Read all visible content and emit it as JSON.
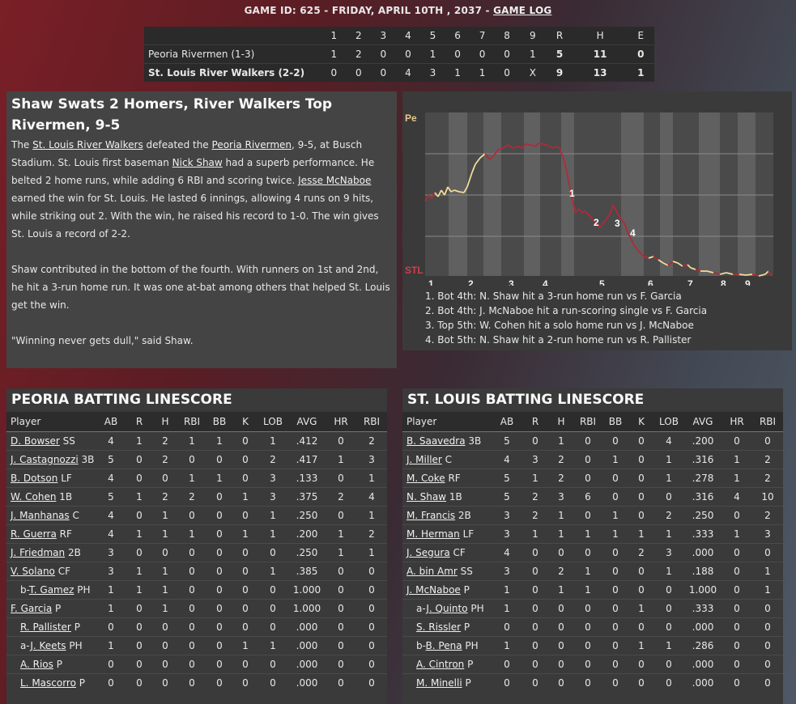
{
  "header": {
    "text": "GAME ID: 625 - FRIDAY, APRIL 10TH , 2037 - ",
    "link": "GAME LOG"
  },
  "linescore": {
    "columns": [
      "1",
      "2",
      "3",
      "4",
      "5",
      "6",
      "7",
      "8",
      "9",
      "R",
      "H",
      "E"
    ],
    "rows": [
      {
        "team": "Peoria Rivermen (1-3)",
        "values": [
          "1",
          "2",
          "0",
          "0",
          "1",
          "0",
          "0",
          "0",
          "1",
          "5",
          "11",
          "0"
        ]
      },
      {
        "team": "St. Louis River Walkers (2-2)",
        "values": [
          "0",
          "0",
          "0",
          "4",
          "3",
          "1",
          "1",
          "0",
          "X",
          "9",
          "13",
          "1"
        ]
      }
    ]
  },
  "recap": {
    "headline": "Shaw Swats 2 Homers, River Walkers Top Rivermen, 9-5",
    "p1": [
      {
        "t": "The "
      },
      {
        "t": "St. Louis River Walkers",
        "link": true
      },
      {
        "t": " defeated the "
      },
      {
        "t": "Peoria Rivermen",
        "link": true
      },
      {
        "t": ", 9-5, at Busch Stadium. St. Louis first baseman "
      },
      {
        "t": "Nick Shaw",
        "link": true
      },
      {
        "t": " had a superb performance. He belted 2 home runs, while adding 6 RBI and scoring twice. "
      },
      {
        "t": "Jesse McNaboe",
        "link": true
      },
      {
        "t": " earned the win for St. Louis. He lasted 6 innings, allowing 4 runs on 9 hits, while striking out 2. With the win, he raised his record to 1-0. The win gives St. Louis a record of 2-2."
      }
    ],
    "p2": "Shaw contributed in the bottom of the fourth. With runners on 1st and 2nd, he hit a 3-run home run. It was one at-bat among others that helped St. Louis get the win.",
    "p3": "\"Winning never gets dull,\" said Shaw."
  },
  "winprob": {
    "top_label": "Pe",
    "bottom_label": "STL",
    "innings": [
      "1",
      "2",
      "3",
      "4",
      "5",
      "6",
      "7",
      "8",
      "9"
    ],
    "markers": [
      "1",
      "2",
      "3",
      "4"
    ],
    "notes": [
      "1. Bot 4th: N. Shaw hit a 3-run home run vs F. Garcia",
      "2. Bot 4th: J. McNaboe hit a run-scoring single vs F. Garcia",
      "3. Top 5th: W. Cohen hit a solo home run vs J. McNaboe",
      "4. Bot 5th: N. Shaw hit a 2-run home run vs R. Pallister"
    ],
    "colors": {
      "peoria": "#f0dc9a",
      "stl": "#b02a3a"
    }
  },
  "batting_columns": [
    "Player",
    "AB",
    "R",
    "H",
    "RBI",
    "BB",
    "K",
    "LOB",
    "AVG",
    "HR",
    "RBI"
  ],
  "peoria": {
    "title": "PEORIA BATTING LINESCORE",
    "rows": [
      {
        "pre": "",
        "name": "D. Bowser",
        "pos": "SS",
        "ind": false,
        "s": [
          "4",
          "1",
          "2",
          "1",
          "1",
          "0",
          "1",
          ".412",
          "0",
          "2"
        ]
      },
      {
        "pre": "",
        "name": "J. Castagnozzi",
        "pos": "3B",
        "ind": false,
        "s": [
          "5",
          "0",
          "2",
          "0",
          "0",
          "0",
          "2",
          ".417",
          "1",
          "3"
        ]
      },
      {
        "pre": "",
        "name": "B. Dotson",
        "pos": "LF",
        "ind": false,
        "s": [
          "4",
          "0",
          "0",
          "1",
          "1",
          "0",
          "3",
          ".133",
          "0",
          "1"
        ]
      },
      {
        "pre": "",
        "name": "W. Cohen",
        "pos": "1B",
        "ind": false,
        "s": [
          "5",
          "1",
          "2",
          "2",
          "0",
          "1",
          "3",
          ".375",
          "2",
          "4"
        ]
      },
      {
        "pre": "",
        "name": "J. Manhanas",
        "pos": "C",
        "ind": false,
        "s": [
          "4",
          "0",
          "1",
          "0",
          "0",
          "0",
          "1",
          ".250",
          "0",
          "1"
        ]
      },
      {
        "pre": "",
        "name": "R. Guerra",
        "pos": "RF",
        "ind": false,
        "s": [
          "4",
          "1",
          "1",
          "1",
          "0",
          "1",
          "1",
          ".200",
          "1",
          "2"
        ]
      },
      {
        "pre": "",
        "name": "J. Friedman",
        "pos": "2B",
        "ind": false,
        "s": [
          "3",
          "0",
          "0",
          "0",
          "0",
          "0",
          "0",
          ".250",
          "1",
          "1"
        ]
      },
      {
        "pre": "",
        "name": "V. Solano",
        "pos": "CF",
        "ind": false,
        "s": [
          "3",
          "1",
          "1",
          "0",
          "0",
          "0",
          "1",
          ".385",
          "0",
          "0"
        ]
      },
      {
        "pre": "b-",
        "name": "T. Gamez",
        "pos": "PH",
        "ind": true,
        "s": [
          "1",
          "1",
          "1",
          "0",
          "0",
          "0",
          "0",
          "1.000",
          "0",
          "0"
        ]
      },
      {
        "pre": "",
        "name": "F. Garcia",
        "pos": "P",
        "ind": false,
        "s": [
          "1",
          "0",
          "1",
          "0",
          "0",
          "0",
          "0",
          "1.000",
          "0",
          "0"
        ]
      },
      {
        "pre": "",
        "name": "R. Pallister",
        "pos": "P",
        "ind": true,
        "s": [
          "0",
          "0",
          "0",
          "0",
          "0",
          "0",
          "0",
          ".000",
          "0",
          "0"
        ]
      },
      {
        "pre": "a-",
        "name": "J. Keets",
        "pos": "PH",
        "ind": true,
        "s": [
          "1",
          "0",
          "0",
          "0",
          "0",
          "1",
          "1",
          ".000",
          "0",
          "0"
        ]
      },
      {
        "pre": "",
        "name": "A. Rios",
        "pos": "P",
        "ind": true,
        "s": [
          "0",
          "0",
          "0",
          "0",
          "0",
          "0",
          "0",
          ".000",
          "0",
          "0"
        ]
      },
      {
        "pre": "",
        "name": "L. Mascorro",
        "pos": "P",
        "ind": true,
        "s": [
          "0",
          "0",
          "0",
          "0",
          "0",
          "0",
          "0",
          ".000",
          "0",
          "0"
        ]
      }
    ]
  },
  "stlouis": {
    "title": "ST. LOUIS BATTING LINESCORE",
    "rows": [
      {
        "pre": "",
        "name": "B. Saavedra",
        "pos": "3B",
        "ind": false,
        "s": [
          "5",
          "0",
          "1",
          "0",
          "0",
          "0",
          "4",
          ".200",
          "0",
          "0"
        ]
      },
      {
        "pre": "",
        "name": "J. Miller",
        "pos": "C",
        "ind": false,
        "s": [
          "4",
          "3",
          "2",
          "0",
          "1",
          "0",
          "1",
          ".316",
          "1",
          "2"
        ]
      },
      {
        "pre": "",
        "name": "M. Coke",
        "pos": "RF",
        "ind": false,
        "s": [
          "5",
          "1",
          "2",
          "0",
          "0",
          "0",
          "1",
          ".278",
          "1",
          "2"
        ]
      },
      {
        "pre": "",
        "name": "N. Shaw",
        "pos": "1B",
        "ind": false,
        "s": [
          "5",
          "2",
          "3",
          "6",
          "0",
          "0",
          "0",
          ".316",
          "4",
          "10"
        ]
      },
      {
        "pre": "",
        "name": "M. Francis",
        "pos": "2B",
        "ind": false,
        "s": [
          "3",
          "2",
          "1",
          "0",
          "1",
          "0",
          "2",
          ".250",
          "0",
          "2"
        ]
      },
      {
        "pre": "",
        "name": "M. Herman",
        "pos": "LF",
        "ind": false,
        "s": [
          "3",
          "1",
          "1",
          "1",
          "1",
          "1",
          "1",
          ".333",
          "1",
          "3"
        ]
      },
      {
        "pre": "",
        "name": "J. Segura",
        "pos": "CF",
        "ind": false,
        "s": [
          "4",
          "0",
          "0",
          "0",
          "0",
          "2",
          "3",
          ".000",
          "0",
          "0"
        ]
      },
      {
        "pre": "",
        "name": "A. bin Amr",
        "pos": "SS",
        "ind": false,
        "s": [
          "3",
          "0",
          "2",
          "1",
          "0",
          "0",
          "1",
          ".188",
          "0",
          "1"
        ]
      },
      {
        "pre": "",
        "name": "J. McNaboe",
        "pos": "P",
        "ind": false,
        "s": [
          "1",
          "0",
          "1",
          "1",
          "0",
          "0",
          "0",
          "1.000",
          "0",
          "1"
        ]
      },
      {
        "pre": "a-",
        "name": "J. Quinto",
        "pos": "PH",
        "ind": true,
        "s": [
          "1",
          "0",
          "0",
          "0",
          "0",
          "1",
          "0",
          ".333",
          "0",
          "0"
        ]
      },
      {
        "pre": "",
        "name": "S. Rissler",
        "pos": "P",
        "ind": true,
        "s": [
          "0",
          "0",
          "0",
          "0",
          "0",
          "0",
          "0",
          ".000",
          "0",
          "0"
        ]
      },
      {
        "pre": "b-",
        "name": "B. Pena",
        "pos": "PH",
        "ind": true,
        "s": [
          "1",
          "0",
          "0",
          "0",
          "0",
          "1",
          "1",
          ".286",
          "0",
          "0"
        ]
      },
      {
        "pre": "",
        "name": "A. Cintron",
        "pos": "P",
        "ind": true,
        "s": [
          "0",
          "0",
          "0",
          "0",
          "0",
          "0",
          "0",
          ".000",
          "0",
          "0"
        ]
      },
      {
        "pre": "",
        "name": "M. Minelli",
        "pos": "P",
        "ind": true,
        "s": [
          "0",
          "0",
          "0",
          "0",
          "0",
          "0",
          "0",
          ".000",
          "0",
          "0"
        ]
      }
    ]
  }
}
